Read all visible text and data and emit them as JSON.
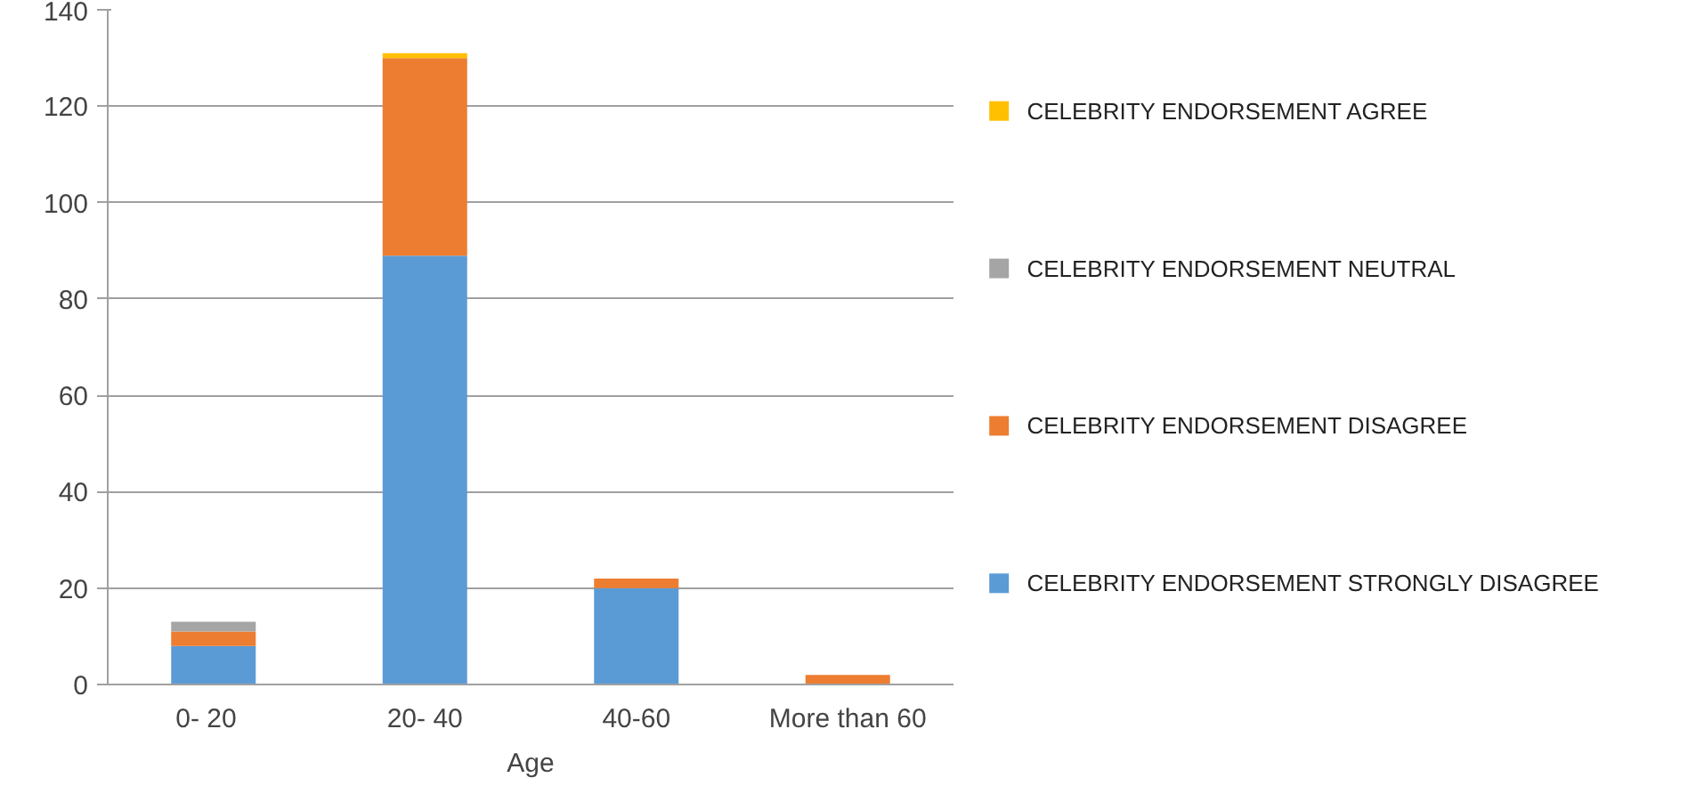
{
  "chart_data": {
    "type": "bar",
    "stacked": true,
    "xlabel": "Age",
    "categories": [
      "0-   20",
      "20- 40",
      "40-60",
      "More than 60"
    ],
    "series": [
      {
        "name": "CELEBRITY ENDORSEMENT STRONGLY DISAGREE",
        "color": "#5b9bd5",
        "values": [
          8,
          89,
          20,
          0
        ]
      },
      {
        "name": "CELEBRITY ENDORSEMENT DISAGREE",
        "color": "#ed7d31",
        "values": [
          3,
          41,
          2,
          2
        ]
      },
      {
        "name": "CELEBRITY ENDORSEMENT NEUTRAL",
        "color": "#a5a5a5",
        "values": [
          2,
          0,
          0,
          0
        ]
      },
      {
        "name": "CELEBRITY ENDORSEMENT AGREE",
        "color": "#ffc000",
        "values": [
          0,
          1,
          0,
          0
        ]
      }
    ],
    "ylim": [
      0,
      140
    ],
    "yticks": [
      0,
      20,
      40,
      60,
      80,
      100,
      120,
      140
    ],
    "grid": "y",
    "legend": "right"
  }
}
